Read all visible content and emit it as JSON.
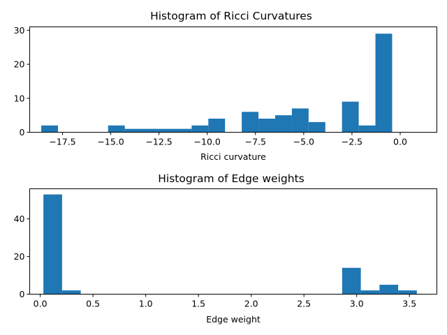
{
  "colors": {
    "bar": "#1f77b4",
    "axis": "#000000",
    "background": "#ffffff"
  },
  "chart_data": [
    {
      "type": "bar",
      "title": "Histogram of Ricci Curvatures",
      "xlabel": "Ricci curvature",
      "ylabel": "",
      "xlim": [
        -19.2,
        1.9
      ],
      "ylim": [
        0,
        31
      ],
      "xticks": [
        -17.5,
        -15.0,
        -12.5,
        -10.0,
        -7.5,
        -5.0,
        -2.5,
        0.0
      ],
      "xtick_labels": [
        "−17.5",
        "−15.0",
        "−12.5",
        "−10.0",
        "−7.5",
        "−5.0",
        "−2.5",
        "0.0"
      ],
      "yticks": [
        0,
        10,
        20,
        30
      ],
      "ytick_labels": [
        "0",
        "10",
        "20",
        "30"
      ],
      "bin_start": -18.6,
      "bin_width": 0.8658,
      "values": [
        2,
        0,
        0,
        0,
        2,
        1,
        1,
        1,
        1,
        2,
        4,
        0,
        6,
        4,
        5,
        7,
        3,
        0,
        9,
        2,
        29
      ],
      "grid": false,
      "legend": "none"
    },
    {
      "type": "bar",
      "title": "Histogram of Edge weights",
      "xlabel": "Edge weight",
      "ylabel": "",
      "xlim": [
        -0.1,
        3.76
      ],
      "ylim": [
        0,
        56
      ],
      "xticks": [
        0.0,
        0.5,
        1.0,
        1.5,
        2.0,
        2.5,
        3.0,
        3.5
      ],
      "xtick_labels": [
        "0.0",
        "0.5",
        "1.0",
        "1.5",
        "2.0",
        "2.5",
        "3.0",
        "3.5"
      ],
      "yticks": [
        0,
        20,
        40
      ],
      "ytick_labels": [
        "0",
        "20",
        "40"
      ],
      "bin_start": 0.03,
      "bin_width": 0.177,
      "values": [
        53,
        2,
        0,
        0,
        0,
        0,
        0,
        0,
        0,
        0,
        0,
        0,
        0,
        0,
        0,
        0,
        14,
        2,
        5,
        2
      ],
      "grid": false,
      "legend": "none"
    }
  ]
}
